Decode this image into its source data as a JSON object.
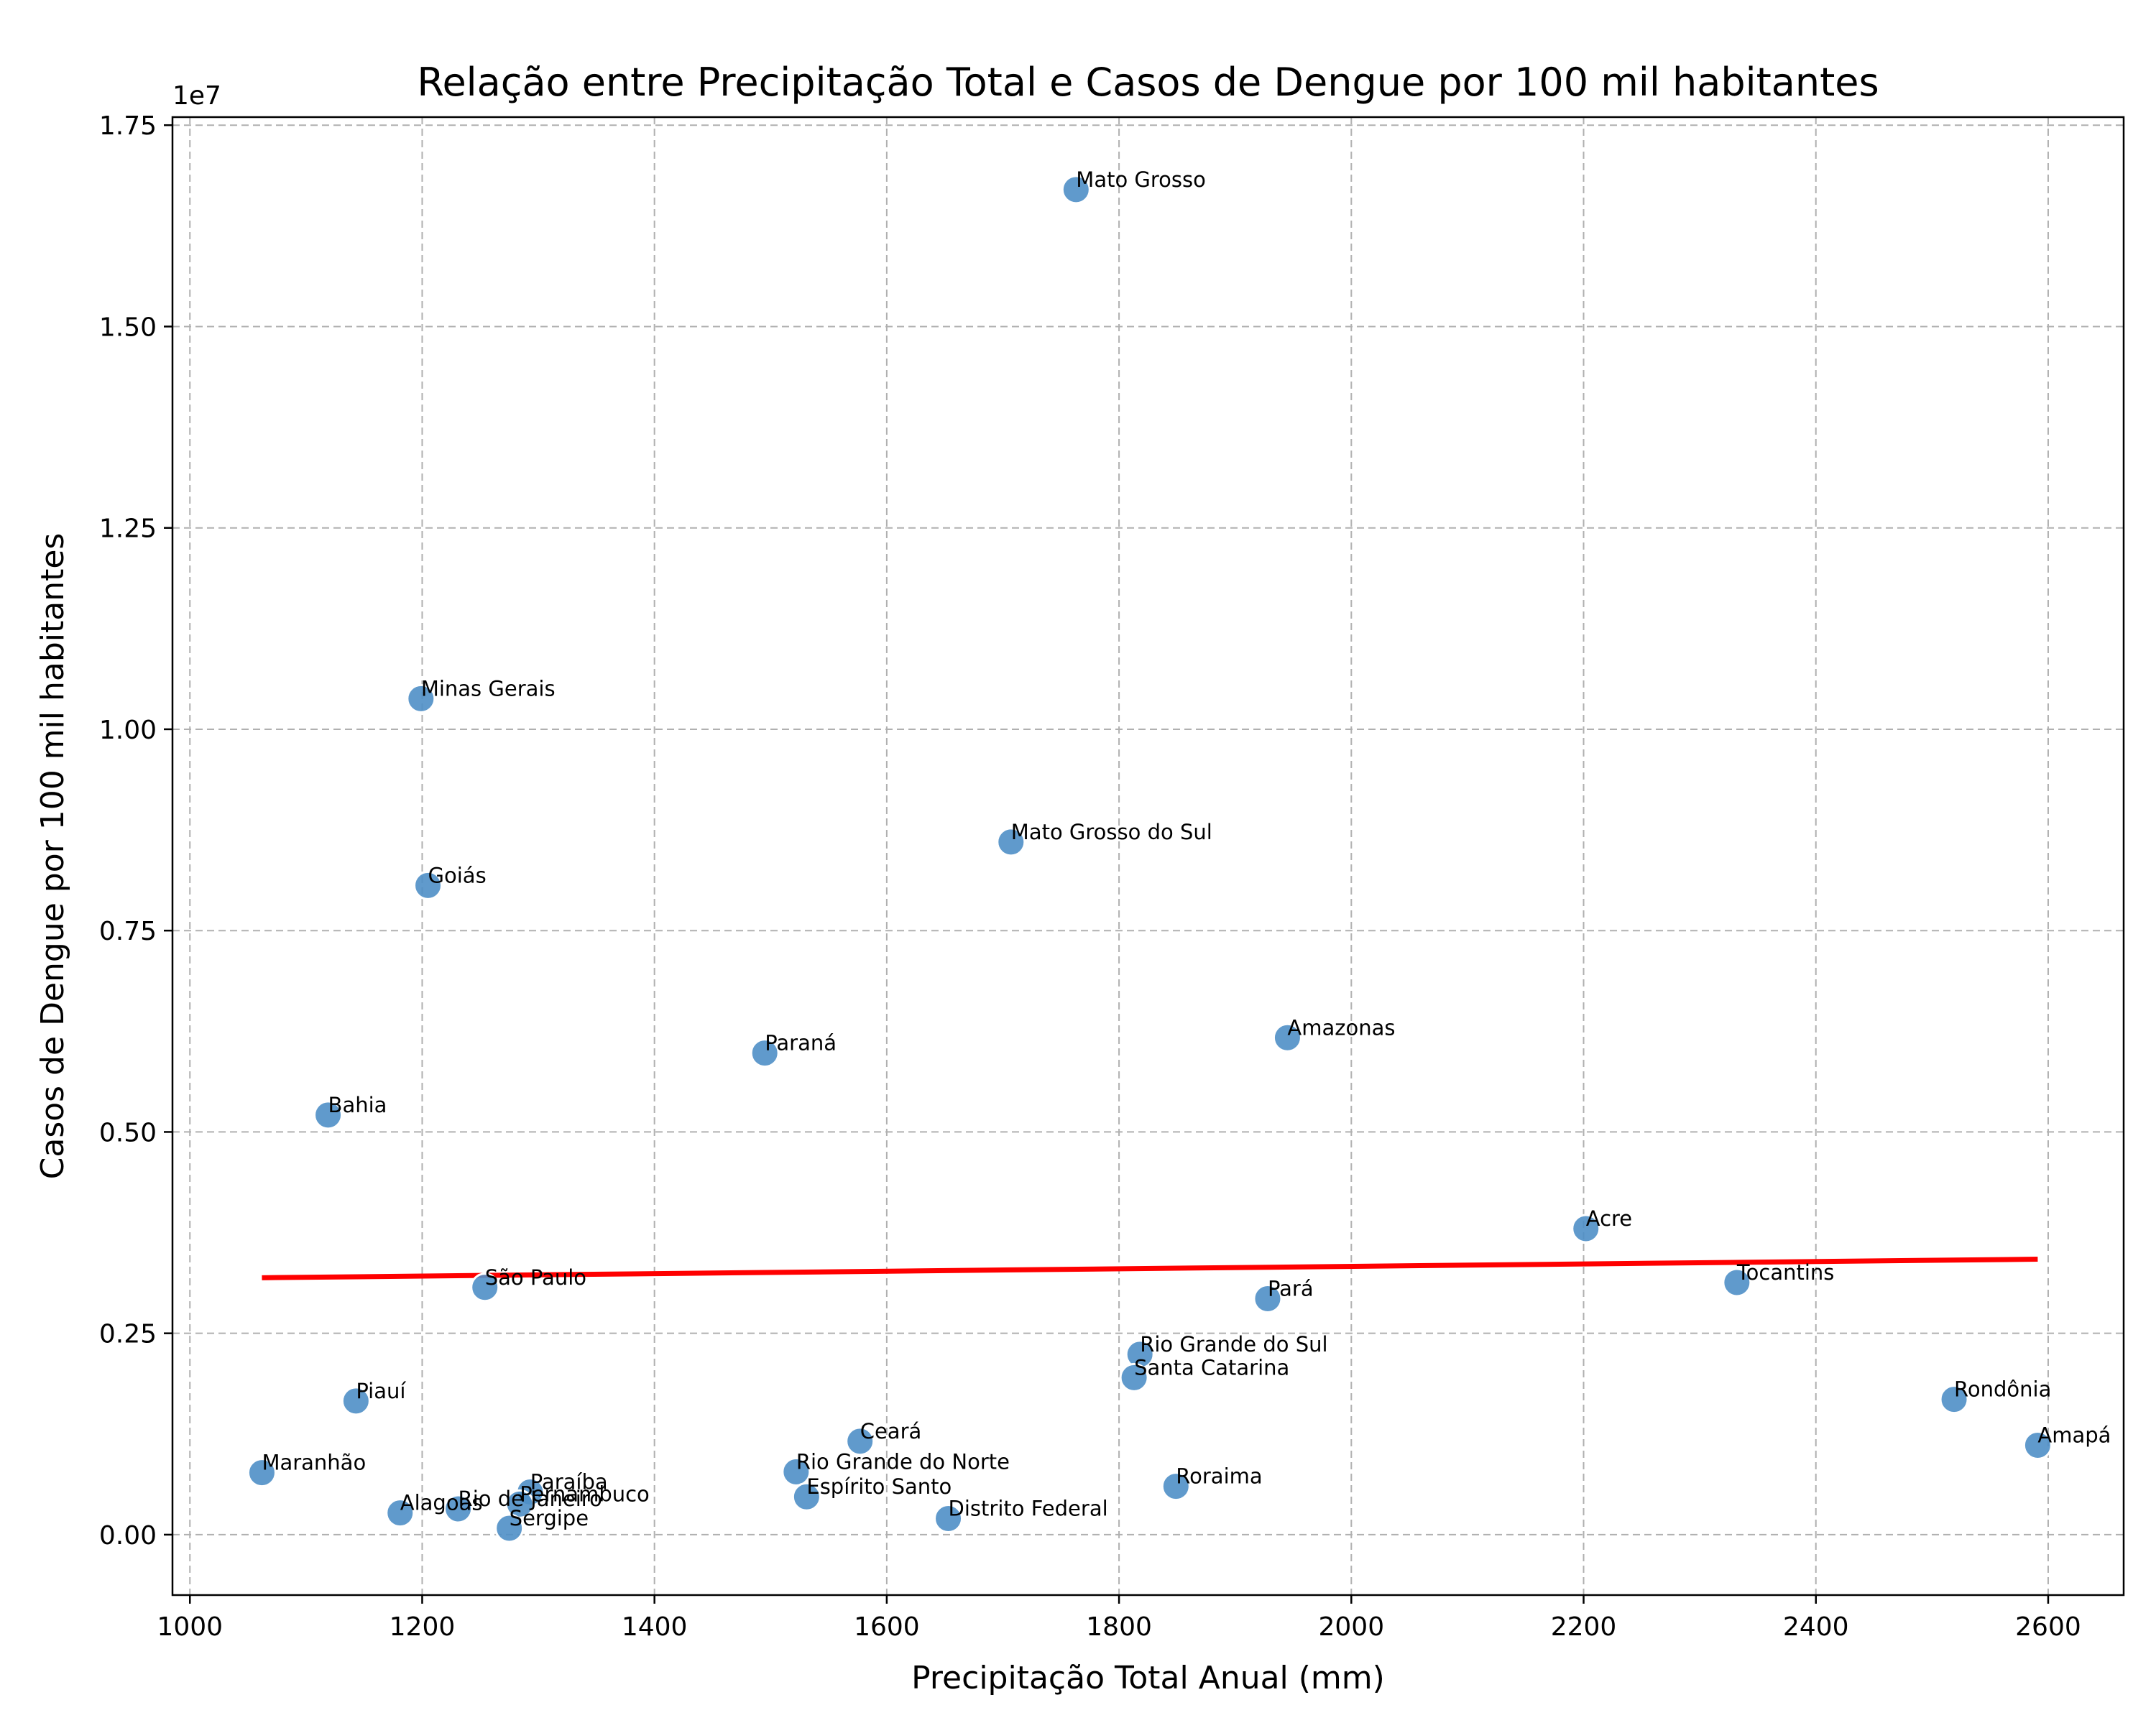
{
  "chart_data": {
    "type": "scatter",
    "title": "Relação entre Precipitação Total e Casos de Dengue por 100 mil habitantes",
    "xlabel": "Precipitação Total Anual (mm)",
    "ylabel": "Casos de Dengue por 100 mil habitantes",
    "y_offset_text": "1e7",
    "xlim": [
      985,
      2665
    ],
    "ylim": [
      -750000,
      17600000
    ],
    "x_ticks": [
      1000,
      1200,
      1400,
      1600,
      1800,
      2000,
      2200,
      2400,
      2600
    ],
    "x_tick_labels": [
      "1000",
      "1200",
      "1400",
      "1600",
      "1800",
      "2000",
      "2200",
      "2400",
      "2600"
    ],
    "y_ticks": [
      0,
      2500000,
      5000000,
      7500000,
      10000000,
      12500000,
      15000000,
      17500000
    ],
    "y_tick_labels": [
      "0.00",
      "0.25",
      "0.50",
      "0.75",
      "1.00",
      "1.25",
      "1.50",
      "1.75"
    ],
    "grid": true,
    "point_color": "#4f8fc6",
    "trend_color": "#ff0000",
    "points": [
      {
        "label": "Mato Grosso",
        "x": 1763,
        "y": 16700000
      },
      {
        "label": "Minas Gerais",
        "x": 1199,
        "y": 10380000
      },
      {
        "label": "Mato Grosso do Sul",
        "x": 1707,
        "y": 8600000
      },
      {
        "label": "Goiás",
        "x": 1205,
        "y": 8060000
      },
      {
        "label": "Amazonas",
        "x": 1945,
        "y": 6170000
      },
      {
        "label": "Paraná",
        "x": 1495,
        "y": 5980000
      },
      {
        "label": "Bahia",
        "x": 1119,
        "y": 5210000
      },
      {
        "label": "Acre",
        "x": 2202,
        "y": 3800000
      },
      {
        "label": "Tocantins",
        "x": 2332,
        "y": 3130000
      },
      {
        "label": "São Paulo",
        "x": 1254,
        "y": 3070000
      },
      {
        "label": "Pará",
        "x": 1928,
        "y": 2930000
      },
      {
        "label": "Rio Grande do Sul",
        "x": 1818,
        "y": 2240000
      },
      {
        "label": "Santa Catarina",
        "x": 1813,
        "y": 1950000
      },
      {
        "label": "Rondônia",
        "x": 2519,
        "y": 1680000
      },
      {
        "label": "Piauí",
        "x": 1143,
        "y": 1660000
      },
      {
        "label": "Ceará",
        "x": 1577,
        "y": 1160000
      },
      {
        "label": "Amapá",
        "x": 2591,
        "y": 1110000
      },
      {
        "label": "Maranhão",
        "x": 1062,
        "y": 770000
      },
      {
        "label": "Rio Grande do Norte",
        "x": 1522,
        "y": 780000
      },
      {
        "label": "Roraima",
        "x": 1849,
        "y": 600000
      },
      {
        "label": "Paraíba",
        "x": 1293,
        "y": 530000
      },
      {
        "label": "Espírito Santo",
        "x": 1531,
        "y": 470000
      },
      {
        "label": "Pernambuco",
        "x": 1284,
        "y": 380000
      },
      {
        "label": "Rio de Janeiro",
        "x": 1231,
        "y": 320000
      },
      {
        "label": "Alagoas",
        "x": 1181,
        "y": 270000
      },
      {
        "label": "Distrito Federal",
        "x": 1653,
        "y": 200000
      },
      {
        "label": "Sergipe",
        "x": 1275,
        "y": 80000
      }
    ],
    "trend_line": {
      "x": [
        1062,
        2591
      ],
      "y": [
        3190000,
        3420000
      ]
    }
  }
}
